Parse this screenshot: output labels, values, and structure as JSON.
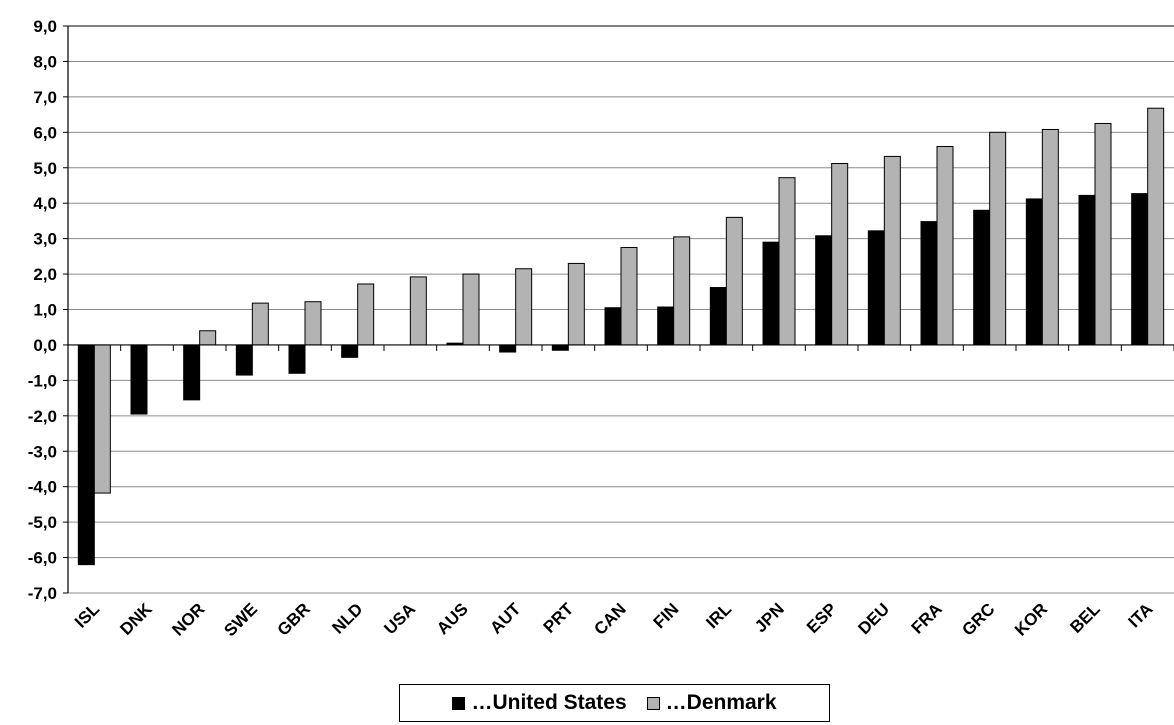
{
  "chart_data": {
    "type": "bar",
    "categories": [
      "ISL",
      "DNK",
      "NOR",
      "SWE",
      "GBR",
      "NLD",
      "USA",
      "AUS",
      "AUT",
      "PRT",
      "CAN",
      "FIN",
      "IRL",
      "JPN",
      "ESP",
      "DEU",
      "FRA",
      "GRC",
      "KOR",
      "BEL",
      "ITA"
    ],
    "series": [
      {
        "name": "…United States",
        "color": "#000000",
        "values": [
          -6.2,
          -1.95,
          -1.55,
          -0.85,
          -0.8,
          -0.35,
          0.0,
          0.05,
          -0.2,
          -0.15,
          1.05,
          1.07,
          1.62,
          2.9,
          3.08,
          3.22,
          3.48,
          3.8,
          4.12,
          4.22,
          4.27
        ]
      },
      {
        "name": "…Denmark",
        "color": "#b3b3b3",
        "values": [
          -4.18,
          0.0,
          0.4,
          1.18,
          1.22,
          1.72,
          1.92,
          2.0,
          2.15,
          2.3,
          2.75,
          3.05,
          3.6,
          4.72,
          5.12,
          5.32,
          5.6,
          6.0,
          6.08,
          6.25,
          6.68
        ]
      }
    ],
    "ylim": [
      -7,
      9
    ],
    "yticks": [
      "9,0",
      "8,0",
      "7,0",
      "6,0",
      "5,0",
      "4,0",
      "3,0",
      "2,0",
      "1,0",
      "0,0",
      "-1,0",
      "-2,0",
      "-3,0",
      "-4,0",
      "-5,0",
      "-6,0",
      "-7,0"
    ],
    "grid": true,
    "legend_position": "bottom-center",
    "title": "",
    "xlabel": "",
    "ylabel": ""
  }
}
